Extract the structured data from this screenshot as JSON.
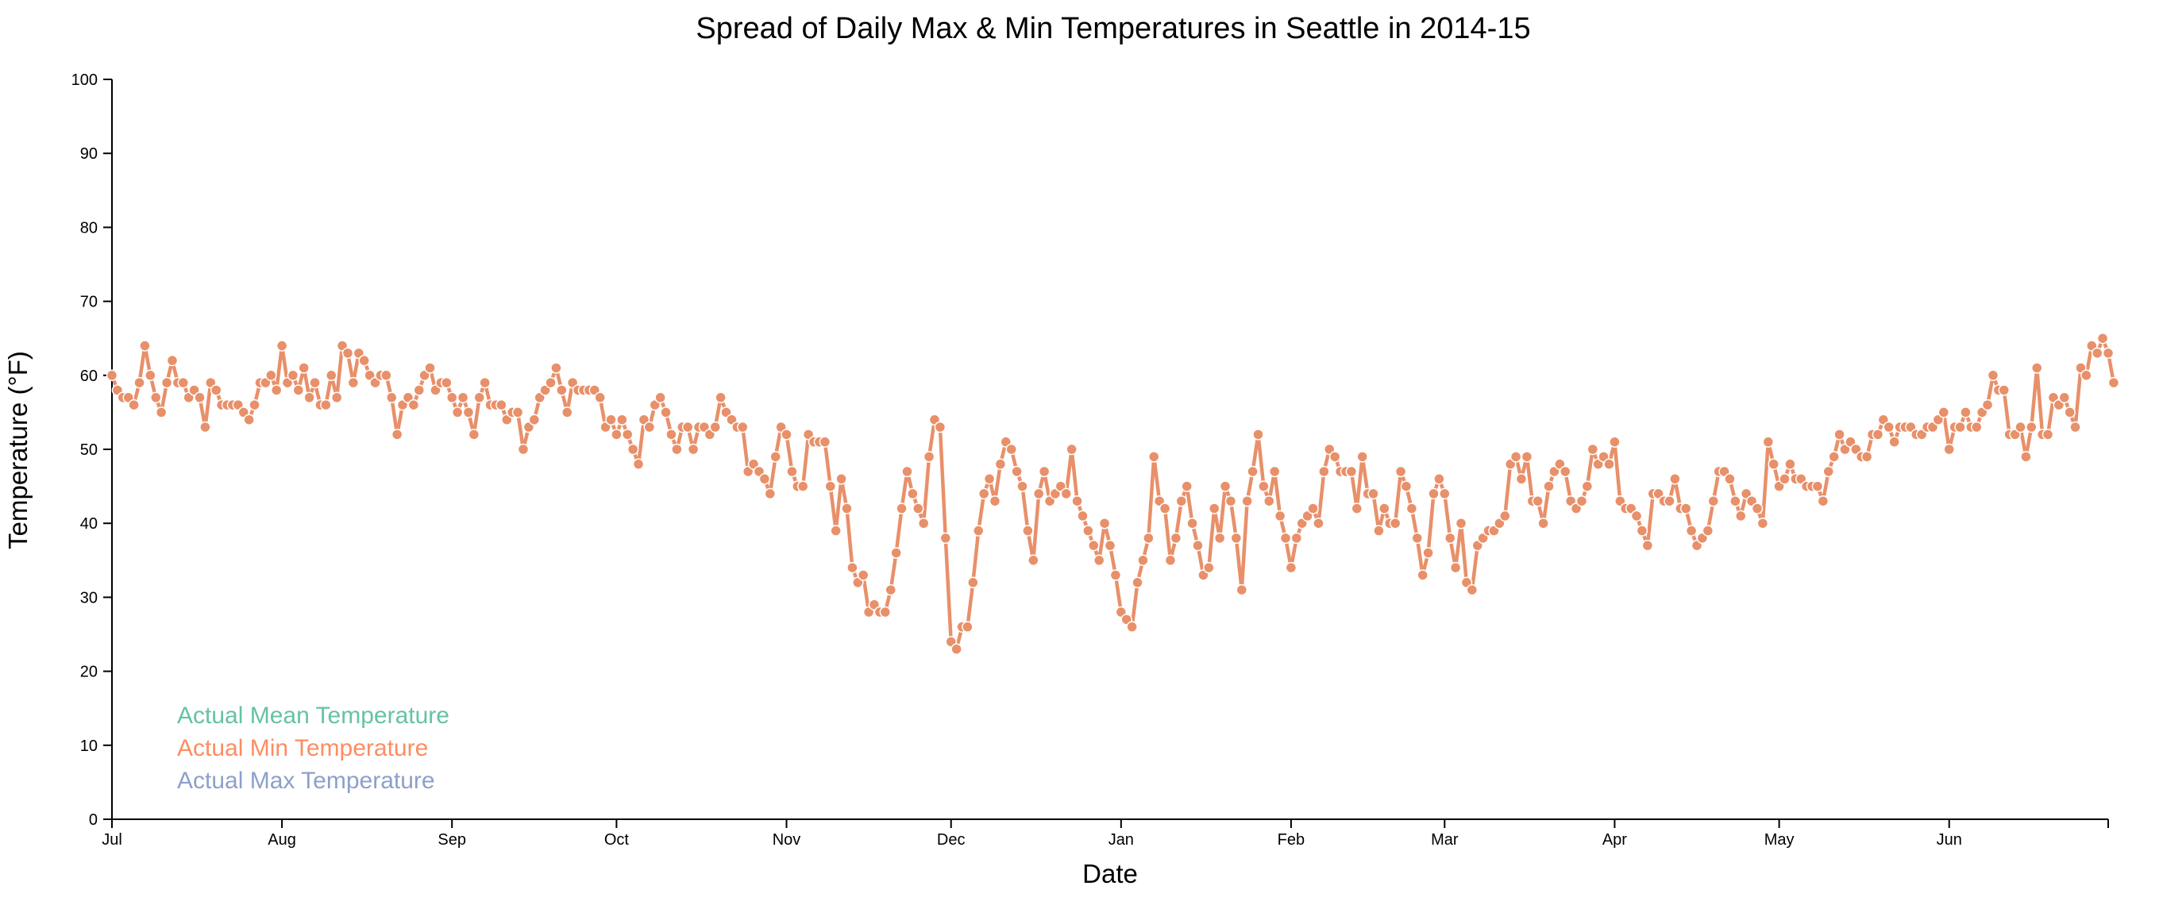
{
  "chart_data": {
    "type": "line",
    "title": "Spread of Daily Max & Min Temperatures in Seattle in 2014-15",
    "xlabel": "Date",
    "ylabel": "Temperature (°F)",
    "ylim": [
      0,
      100
    ],
    "yticks": [
      0,
      10,
      20,
      30,
      40,
      50,
      60,
      70,
      80,
      90,
      100
    ],
    "xlim": [
      "2014-07-01",
      "2015-06-30"
    ],
    "xticks": [
      {
        "date": "2014-07-01",
        "label": "Jul"
      },
      {
        "date": "2014-08-01",
        "label": "Aug"
      },
      {
        "date": "2014-09-01",
        "label": "Sep"
      },
      {
        "date": "2014-10-01",
        "label": "Oct"
      },
      {
        "date": "2014-11-01",
        "label": "Nov"
      },
      {
        "date": "2014-12-01",
        "label": "Dec"
      },
      {
        "date": "2015-01-01",
        "label": "Jan"
      },
      {
        "date": "2015-02-01",
        "label": "Feb"
      },
      {
        "date": "2015-03-01",
        "label": "Mar"
      },
      {
        "date": "2015-04-01",
        "label": "Apr"
      },
      {
        "date": "2015-05-01",
        "label": "May"
      },
      {
        "date": "2015-06-01",
        "label": "Jun"
      }
    ],
    "grid": false,
    "legend_position": "bottom-left",
    "legend": [
      {
        "name": "Actual Mean Temperature",
        "color": "#66c2a5"
      },
      {
        "name": "Actual Min Temperature",
        "color": "#fc8d62"
      },
      {
        "name": "Actual Max Temperature",
        "color": "#8da0cb"
      }
    ],
    "series": [
      {
        "name": "Actual Min Temperature",
        "color": "#e8906a",
        "start_date": "2014-07-01",
        "values": [
          60,
          58,
          57,
          57,
          56,
          59,
          64,
          60,
          57,
          55,
          59,
          62,
          59,
          59,
          57,
          58,
          57,
          53,
          59,
          58,
          56,
          56,
          56,
          56,
          55,
          54,
          56,
          59,
          59,
          60,
          58,
          64,
          59,
          60,
          58,
          61,
          57,
          59,
          56,
          56,
          60,
          57,
          64,
          63,
          59,
          63,
          62,
          60,
          59,
          60,
          60,
          57,
          52,
          56,
          57,
          56,
          58,
          60,
          61,
          58,
          59,
          59,
          57,
          55,
          57,
          55,
          52,
          57,
          59,
          56,
          56,
          56,
          54,
          55,
          55,
          50,
          53,
          54,
          57,
          58,
          59,
          61,
          58,
          55,
          59,
          58,
          58,
          58,
          58,
          57,
          53,
          54,
          52,
          54,
          52,
          50,
          48,
          54,
          53,
          56,
          57,
          55,
          52,
          50,
          53,
          53,
          50,
          53,
          53,
          52,
          53,
          57,
          55,
          54,
          53,
          53,
          47,
          48,
          47,
          46,
          44,
          49,
          53,
          52,
          47,
          45,
          45,
          52,
          51,
          51,
          51,
          45,
          39,
          46,
          42,
          34,
          32,
          33,
          28,
          29,
          28,
          28,
          31,
          36,
          42,
          47,
          44,
          42,
          40,
          49,
          54,
          53,
          38,
          24,
          23,
          26,
          26,
          32,
          39,
          44,
          46,
          43,
          48,
          51,
          50,
          47,
          45,
          39,
          35,
          44,
          47,
          43,
          44,
          45,
          44,
          50,
          43,
          41,
          39,
          37,
          35,
          40,
          37,
          33,
          28,
          27,
          26,
          32,
          35,
          38,
          49,
          43,
          42,
          35,
          38,
          43,
          45,
          40,
          37,
          33,
          34,
          42,
          38,
          45,
          43,
          38,
          31,
          43,
          47,
          52,
          45,
          43,
          47,
          41,
          38,
          34,
          38,
          40,
          41,
          42,
          40,
          47,
          50,
          49,
          47,
          47,
          47,
          42,
          49,
          44,
          44,
          39,
          42,
          40,
          40,
          47,
          45,
          42,
          38,
          33,
          36,
          44,
          46,
          44,
          38,
          34,
          40,
          32,
          31,
          37,
          38,
          39,
          39,
          40,
          41,
          48,
          49,
          46,
          49,
          43,
          43,
          40,
          45,
          47,
          48,
          47,
          43,
          42,
          43,
          45,
          50,
          48,
          49,
          48,
          51,
          43,
          42,
          42,
          41,
          39,
          37,
          44,
          44,
          43,
          43,
          46,
          42,
          42,
          39,
          37,
          38,
          39,
          43,
          47,
          47,
          46,
          43,
          41,
          44,
          43,
          42,
          40,
          51,
          48,
          45,
          46,
          48,
          46,
          46,
          45,
          45,
          45,
          43,
          47,
          49,
          52,
          50,
          51,
          50,
          49,
          49,
          52,
          52,
          54,
          53,
          51,
          53,
          53,
          53,
          52,
          52,
          53,
          53,
          54,
          55,
          50,
          53,
          53,
          55,
          53,
          53,
          55,
          56,
          60,
          58,
          58,
          52,
          52,
          53,
          49,
          53,
          61,
          52,
          52,
          57,
          56,
          57,
          55,
          53,
          61,
          60,
          64,
          63,
          65,
          63,
          59
        ]
      }
    ]
  }
}
